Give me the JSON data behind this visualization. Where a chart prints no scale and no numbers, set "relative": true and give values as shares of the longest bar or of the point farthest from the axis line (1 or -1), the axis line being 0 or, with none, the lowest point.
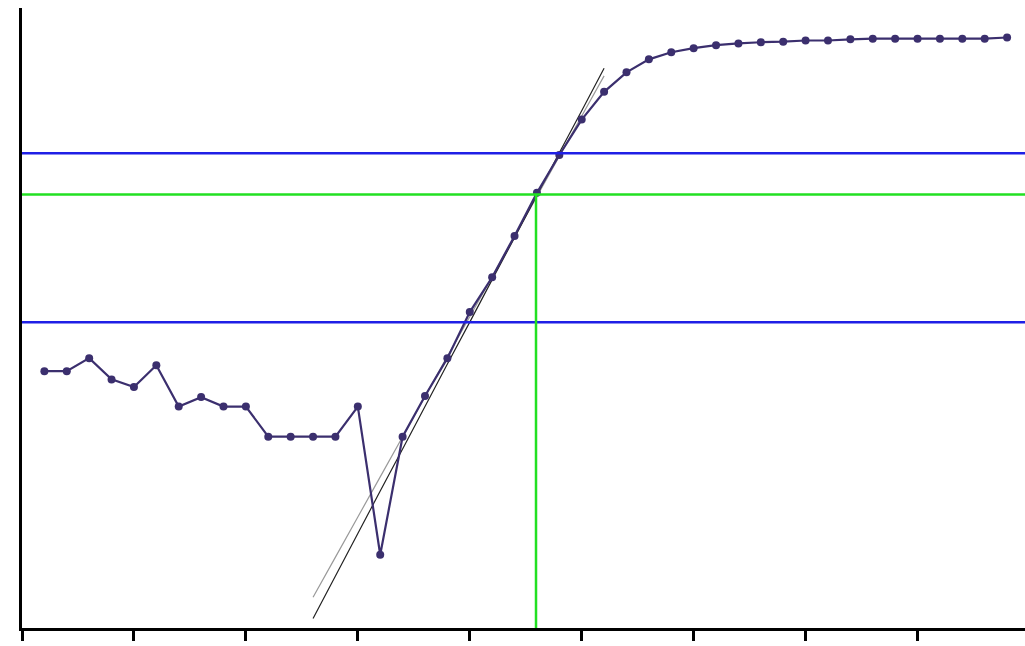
{
  "chart_data": {
    "type": "line",
    "relative": true,
    "marker": "circle",
    "line_style": "solid",
    "categories": [
      null,
      null,
      null,
      null,
      null,
      null,
      null,
      null,
      null,
      null,
      null,
      null,
      null,
      null,
      null,
      null,
      null,
      null,
      null,
      null,
      null,
      null,
      null,
      null,
      null,
      null,
      null,
      null,
      null,
      null,
      null,
      null,
      null,
      null,
      null,
      null,
      null,
      null,
      null,
      null,
      null,
      null,
      null,
      null
    ],
    "series": [
      {
        "color": "#3b2f6e",
        "values": [
          0.435,
          0.435,
          0.457,
          0.421,
          0.408,
          0.445,
          0.375,
          0.391,
          0.375,
          0.375,
          0.324,
          0.324,
          0.324,
          0.324,
          0.375,
          0.124,
          0.324,
          0.393,
          0.457,
          0.535,
          0.594,
          0.664,
          0.737,
          0.801,
          0.861,
          0.908,
          0.941,
          0.963,
          0.975,
          0.982,
          0.987,
          0.99,
          0.992,
          0.993,
          0.995,
          0.995,
          0.997,
          0.998,
          0.998,
          0.998,
          0.998,
          0.998,
          0.998,
          1
        ]
      },
      {
        "type": "line",
        "marker": "none",
        "color": "#222222",
        "values": [
          null,
          null,
          null,
          null,
          null,
          null,
          null,
          null,
          null,
          null,
          null,
          null,
          0.016,
          0.088,
          0.16,
          0.232,
          0.303,
          0.375,
          0.447,
          0.518,
          0.59,
          0.661,
          0.733,
          0.805,
          0.876,
          0.948,
          null,
          null,
          null,
          null,
          null,
          null,
          null,
          null,
          null,
          null,
          null,
          null,
          null,
          null,
          null,
          null,
          null,
          null
        ]
      },
      {
        "type": "line",
        "marker": "none",
        "color": "#999999",
        "values": [
          null,
          null,
          null,
          null,
          null,
          null,
          null,
          null,
          null,
          null,
          null,
          null,
          0.052,
          0.12,
          0.188,
          0.256,
          0.324,
          0.392,
          0.46,
          0.527,
          0.595,
          0.663,
          0.731,
          0.799,
          0.867,
          0.935,
          null,
          null,
          null,
          null,
          null,
          null,
          null,
          null,
          null,
          null,
          null,
          null,
          null,
          null,
          null,
          null,
          null,
          null
        ]
      }
    ],
    "ref_lines": [
      {
        "axis": "y",
        "value": 0.804,
        "color": "#1f1fe6"
      },
      {
        "axis": "y",
        "value": 0.518,
        "color": "#1f1fe6"
      },
      {
        "axis": "y",
        "value": 0.734,
        "color": "#22e022"
      }
    ]
  }
}
